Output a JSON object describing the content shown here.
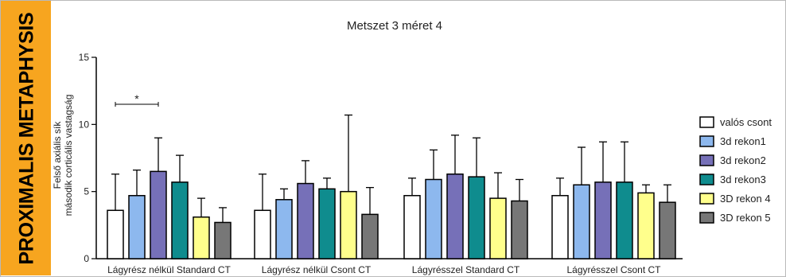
{
  "sidebar": {
    "label": "PROXIMALIS METAPHYSIS",
    "color": "#f7a51f"
  },
  "chart_data": {
    "type": "bar",
    "title": "Metszet 3 méret 4",
    "ylabel_lines": [
      "Felső axiális sík",
      "második corticális vastagság"
    ],
    "xlabel": "",
    "ylim": [
      0,
      15
    ],
    "yticks": [
      0,
      5,
      10,
      15
    ],
    "categories": [
      "Lágyrész nélkül Standard CT",
      "Lágyrész nélkül Csont CT",
      "Lágyrésszel Standard CT",
      "Lágyrésszel Csont CT"
    ],
    "series": [
      {
        "name": "valós csont",
        "color": "#ffffff",
        "values": [
          3.6,
          3.6,
          4.7,
          4.7
        ],
        "errors": [
          2.7,
          2.7,
          1.3,
          1.3
        ]
      },
      {
        "name": "3d rekon1",
        "color": "#8db8ee",
        "values": [
          4.7,
          4.4,
          5.9,
          5.5
        ],
        "errors": [
          1.9,
          0.8,
          2.2,
          2.8
        ]
      },
      {
        "name": "3d rekon2",
        "color": "#7670b8",
        "values": [
          6.5,
          5.6,
          6.3,
          5.7
        ],
        "errors": [
          2.5,
          1.7,
          2.9,
          3.0
        ]
      },
      {
        "name": "3d rekon3",
        "color": "#0f8c8e",
        "values": [
          5.7,
          5.2,
          6.1,
          5.7
        ],
        "errors": [
          2.0,
          0.8,
          2.9,
          3.0
        ]
      },
      {
        "name": "3D rekon 4",
        "color": "#ffff8c",
        "values": [
          3.1,
          5.0,
          4.5,
          4.9
        ],
        "errors": [
          1.4,
          5.7,
          1.9,
          0.6
        ]
      },
      {
        "name": "3D rekon 5",
        "color": "#777777",
        "values": [
          2.7,
          3.3,
          4.3,
          4.2
        ],
        "errors": [
          1.1,
          2.0,
          1.6,
          1.3
        ]
      }
    ],
    "annotations": [
      {
        "text": "*",
        "type": "significance-bracket",
        "from_series": 0,
        "to_series": 2,
        "category": 0,
        "y": 11.5
      }
    ],
    "legend_position": "right",
    "grid": false
  }
}
